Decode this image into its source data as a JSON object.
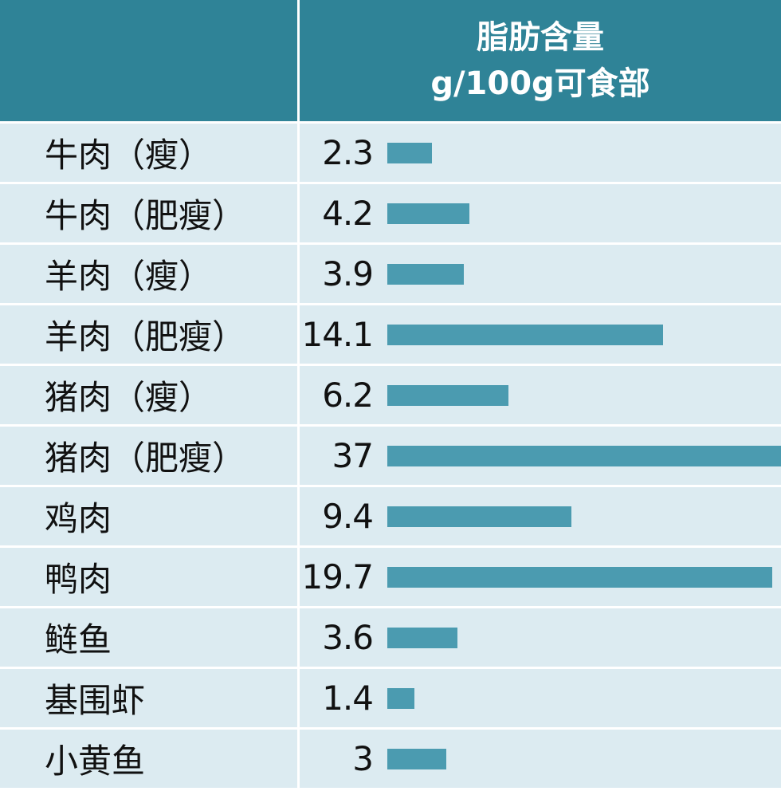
{
  "header": {
    "title_line1": "脂肪含量",
    "title_line2": "g/100g可食部"
  },
  "colors": {
    "header_bg": "#2f8397",
    "row_bg": "#dcebf1",
    "bar": "#4b9bb0"
  },
  "chart_data": {
    "type": "bar",
    "orientation": "horizontal",
    "categories": [
      "牛肉（瘦）",
      "牛肉（肥瘦）",
      "羊肉（瘦）",
      "羊肉（肥瘦）",
      "猪肉（瘦）",
      "猪肉（肥瘦）",
      "鸡肉",
      "鸭肉",
      "鲢鱼",
      "基围虾",
      "小黄鱼"
    ],
    "values": [
      2.3,
      4.2,
      3.9,
      14.1,
      6.2,
      37,
      9.4,
      19.7,
      3.6,
      1.4,
      3
    ],
    "value_labels": [
      "2.3",
      "4.2",
      "3.9",
      "14.1",
      "6.2",
      "37",
      "9.4",
      "19.7",
      "3.6",
      "1.4",
      "3"
    ],
    "title": "脂肪含量",
    "xlabel": "g/100g可食部",
    "ylabel": "",
    "grid": false,
    "legend": "none"
  }
}
